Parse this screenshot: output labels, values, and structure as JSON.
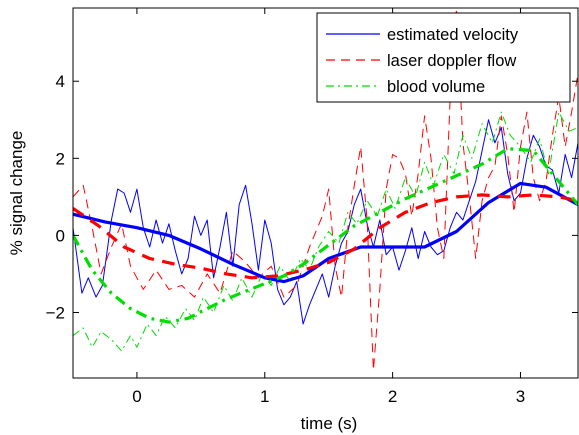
{
  "chart_data": {
    "type": "line",
    "title": "",
    "xlabel": "time (s)",
    "ylabel": "% signal change",
    "xlim": [
      -0.5,
      3.45
    ],
    "ylim": [
      -3.7,
      5.9
    ],
    "xticks": [
      0,
      1,
      2,
      3
    ],
    "yticks": [
      -2,
      0,
      2,
      4
    ],
    "xtick_labels": [
      "0",
      "1",
      "2",
      "3"
    ],
    "ytick_labels": [
      "−2",
      "0",
      "2",
      "4"
    ],
    "grid": false,
    "legend_position": "top-right",
    "legend": [
      {
        "label": "estimated velocity",
        "color": "#0000ff",
        "style": "solid"
      },
      {
        "label": "laser doppler flow",
        "color": "#ff0000",
        "style": "dashed"
      },
      {
        "label": "blood volume",
        "color": "#00dd00",
        "style": "dash-dot"
      }
    ],
    "series": [
      {
        "name": "estimated velocity",
        "kind": "smooth",
        "color": "#0000ff",
        "style": "solid",
        "x": [
          -0.5,
          -0.25,
          0,
          0.25,
          0.5,
          0.75,
          1.0,
          1.15,
          1.3,
          1.5,
          1.75,
          2.0,
          2.25,
          2.5,
          2.75,
          3.0,
          3.2,
          3.45
        ],
        "y": [
          0.55,
          0.35,
          0.2,
          0.0,
          -0.35,
          -0.75,
          -1.1,
          -1.2,
          -1.05,
          -0.6,
          -0.3,
          -0.3,
          -0.3,
          0.1,
          0.85,
          1.35,
          1.25,
          0.8
        ]
      },
      {
        "name": "estimated velocity",
        "kind": "raw",
        "color": "#0000ff",
        "style": "solid",
        "x": [
          -0.5,
          -0.43,
          -0.38,
          -0.32,
          -0.27,
          -0.2,
          -0.15,
          -0.1,
          -0.05,
          0.0,
          0.05,
          0.1,
          0.15,
          0.2,
          0.25,
          0.3,
          0.35,
          0.4,
          0.45,
          0.5,
          0.55,
          0.6,
          0.65,
          0.7,
          0.75,
          0.8,
          0.85,
          0.9,
          0.95,
          1.0,
          1.05,
          1.1,
          1.15,
          1.2,
          1.25,
          1.3,
          1.35,
          1.4,
          1.45,
          1.5,
          1.55,
          1.6,
          1.65,
          1.7,
          1.75,
          1.8,
          1.85,
          1.9,
          1.95,
          2.0,
          2.05,
          2.1,
          2.15,
          2.2,
          2.25,
          2.3,
          2.35,
          2.4,
          2.45,
          2.5,
          2.55,
          2.6,
          2.65,
          2.7,
          2.75,
          2.8,
          2.85,
          2.9,
          2.95,
          3.0,
          3.05,
          3.1,
          3.15,
          3.2,
          3.25,
          3.3,
          3.35,
          3.4,
          3.45
        ],
        "y": [
          0.2,
          -1.5,
          -1.1,
          -1.6,
          -1.3,
          0.4,
          1.2,
          1.1,
          0.6,
          1.2,
          0.2,
          -0.3,
          0.4,
          -0.2,
          0.3,
          -0.4,
          -1.0,
          -0.6,
          0.5,
          0.0,
          0.4,
          -1.1,
          -0.3,
          0.6,
          -0.8,
          0.8,
          1.3,
          0.3,
          -0.9,
          0.4,
          -0.2,
          -1.4,
          -1.8,
          -1.6,
          -1.2,
          -2.3,
          -1.8,
          -1.4,
          -1.0,
          -1.6,
          -0.8,
          -0.2,
          0.1,
          0.8,
          1.2,
          0.3,
          -0.3,
          0.4,
          -0.5,
          -0.3,
          -0.9,
          -0.4,
          0.2,
          -0.6,
          0.1,
          -0.3,
          -0.5,
          -0.4,
          0.2,
          0.6,
          0.4,
          0.9,
          1.4,
          2.2,
          3.0,
          2.4,
          2.8,
          1.6,
          0.9,
          1.1,
          2.0,
          2.6,
          2.3,
          1.8,
          1.7,
          1.1,
          2.1,
          1.5,
          2.4
        ]
      },
      {
        "name": "laser doppler flow",
        "kind": "smooth",
        "color": "#ff0000",
        "style": "dashed",
        "x": [
          -0.5,
          -0.3,
          -0.1,
          0.1,
          0.3,
          0.5,
          0.7,
          0.9,
          1.1,
          1.3,
          1.5,
          1.7,
          1.9,
          2.1,
          2.3,
          2.5,
          2.7,
          2.9,
          3.1,
          3.3,
          3.45
        ],
        "y": [
          0.7,
          0.25,
          -0.3,
          -0.6,
          -0.75,
          -0.85,
          -1.0,
          -1.1,
          -1.05,
          -0.9,
          -0.7,
          -0.35,
          0.2,
          0.6,
          0.85,
          1.0,
          1.05,
          1.0,
          1.05,
          1.0,
          0.9
        ]
      },
      {
        "name": "laser doppler flow",
        "kind": "raw",
        "color": "#ff0000",
        "style": "dashed",
        "x": [
          -0.5,
          -0.42,
          -0.35,
          -0.28,
          -0.2,
          -0.12,
          -0.05,
          0.05,
          0.15,
          0.25,
          0.35,
          0.45,
          0.55,
          0.65,
          0.75,
          0.85,
          0.95,
          1.05,
          1.15,
          1.25,
          1.35,
          1.45,
          1.5,
          1.55,
          1.6,
          1.65,
          1.7,
          1.75,
          1.8,
          1.85,
          1.9,
          1.95,
          2.0,
          2.05,
          2.1,
          2.15,
          2.2,
          2.25,
          2.3,
          2.35,
          2.4,
          2.45,
          2.5,
          2.55,
          2.6,
          2.65,
          2.7,
          2.75,
          2.8,
          2.85,
          2.9,
          2.95,
          3.0,
          3.05,
          3.1,
          3.15,
          3.2,
          3.25,
          3.3,
          3.35,
          3.4,
          3.45
        ],
        "y": [
          1.0,
          1.3,
          0.2,
          -1.0,
          -0.3,
          0.3,
          -0.8,
          -1.4,
          -0.9,
          -1.4,
          -1.3,
          -1.6,
          -1.0,
          -1.5,
          -0.4,
          -0.7,
          -1.1,
          -0.8,
          -1.6,
          -1.3,
          -0.3,
          0.5,
          1.2,
          -0.8,
          -1.6,
          0.2,
          1.3,
          2.3,
          0.4,
          -3.5,
          -1.4,
          1.2,
          2.1,
          2.0,
          1.6,
          0.5,
          1.6,
          3.1,
          2.0,
          0.2,
          -0.6,
          3.6,
          5.9,
          2.4,
          1.0,
          -0.6,
          0.9,
          1.5,
          1.8,
          3.1,
          2.1,
          0.6,
          2.3,
          3.2,
          1.5,
          0.9,
          1.4,
          2.6,
          3.6,
          2.3,
          3.2,
          4.2
        ]
      },
      {
        "name": "blood volume",
        "kind": "smooth",
        "color": "#00dd00",
        "style": "dash-dot",
        "x": [
          -0.5,
          -0.35,
          -0.2,
          -0.05,
          0.1,
          0.25,
          0.4,
          0.55,
          0.7,
          0.85,
          1.0,
          1.15,
          1.3,
          1.5,
          1.7,
          1.9,
          2.1,
          2.3,
          2.5,
          2.7,
          2.9,
          3.1,
          3.25,
          3.45
        ],
        "y": [
          0.0,
          -0.9,
          -1.5,
          -1.9,
          -2.15,
          -2.25,
          -2.15,
          -1.9,
          -1.65,
          -1.45,
          -1.25,
          -1.05,
          -0.75,
          -0.25,
          0.25,
          0.6,
          0.95,
          1.25,
          1.55,
          1.85,
          2.25,
          2.2,
          1.6,
          0.8
        ]
      },
      {
        "name": "blood volume",
        "kind": "raw",
        "color": "#00dd00",
        "style": "dash-dot",
        "x": [
          -0.5,
          -0.42,
          -0.35,
          -0.28,
          -0.2,
          -0.12,
          -0.05,
          0.0,
          0.08,
          0.15,
          0.22,
          0.3,
          0.38,
          0.45,
          0.52,
          0.6,
          0.68,
          0.75,
          0.82,
          0.9,
          0.98,
          1.05,
          1.12,
          1.2,
          1.28,
          1.35,
          1.42,
          1.5,
          1.58,
          1.65,
          1.72,
          1.8,
          1.88,
          1.95,
          2.02,
          2.1,
          2.18,
          2.25,
          2.32,
          2.4,
          2.48,
          2.55,
          2.62,
          2.7,
          2.78,
          2.85,
          2.92,
          3.0,
          3.08,
          3.15,
          3.22,
          3.3,
          3.38,
          3.45
        ],
        "y": [
          -2.6,
          -2.4,
          -2.9,
          -2.5,
          -2.7,
          -3.0,
          -2.6,
          -2.9,
          -2.3,
          -2.6,
          -2.1,
          -2.4,
          -1.9,
          -2.2,
          -1.6,
          -2.0,
          -1.3,
          -1.7,
          -1.1,
          -1.6,
          -1.0,
          -1.3,
          -0.8,
          -1.2,
          -0.6,
          -0.9,
          -0.3,
          0.1,
          -0.2,
          0.6,
          0.3,
          0.9,
          0.5,
          1.2,
          0.7,
          1.5,
          1.0,
          1.9,
          1.3,
          2.1,
          1.6,
          2.6,
          2.0,
          2.9,
          2.4,
          3.2,
          2.6,
          2.3,
          1.9,
          2.5,
          1.6,
          3.2,
          2.7,
          2.8
        ]
      }
    ]
  }
}
